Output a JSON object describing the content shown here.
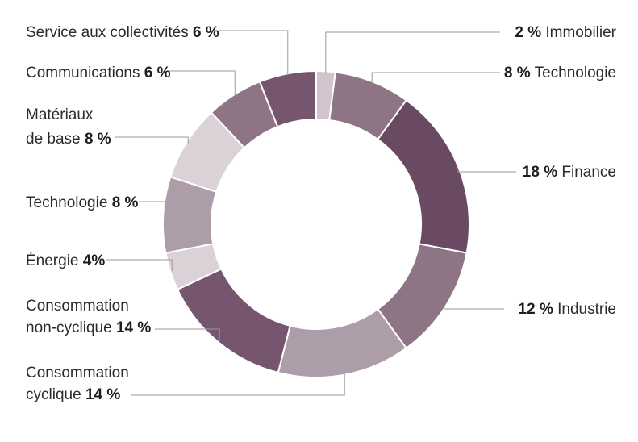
{
  "chart_data": {
    "type": "pie",
    "variant": "donut",
    "title": "",
    "slices": [
      {
        "label": "Immobilier",
        "pct_text": "2 %",
        "value": 2,
        "color": "#d2c3cd"
      },
      {
        "label": "Technologie",
        "pct_text": "8 %",
        "value": 8,
        "color": "#8e7586"
      },
      {
        "label": "Finance",
        "pct_text": "18 %",
        "value": 18,
        "color": "#6a4a62"
      },
      {
        "label": "Industrie",
        "pct_text": "12 %",
        "value": 12,
        "color": "#8e7586"
      },
      {
        "label": "Consommation cyclique",
        "label_lines": [
          "Consommation",
          "cyclique"
        ],
        "pct_text": "14 %",
        "value": 14,
        "color": "#ad9da8"
      },
      {
        "label": "Consommation non-cyclique",
        "label_lines": [
          "Consommation",
          "non-cyclique"
        ],
        "pct_text": "14 %",
        "value": 14,
        "color": "#76566e"
      },
      {
        "label": "Énergie",
        "pct_text": "4%",
        "value": 4,
        "color": "#dbd2d8"
      },
      {
        "label": "Technologie",
        "pct_text": "8 %",
        "value": 8,
        "color": "#ad9da8"
      },
      {
        "label": "Matériaux de base",
        "label_lines": [
          "Matériaux",
          "de base"
        ],
        "pct_text": "8 %",
        "value": 8,
        "color": "#dbd2d8"
      },
      {
        "label": "Communications",
        "pct_text": "6 %",
        "value": 6,
        "color": "#8e7586"
      },
      {
        "label": "Service aux collectivités",
        "pct_text": "6 %",
        "value": 6,
        "color": "#76566e"
      }
    ]
  }
}
